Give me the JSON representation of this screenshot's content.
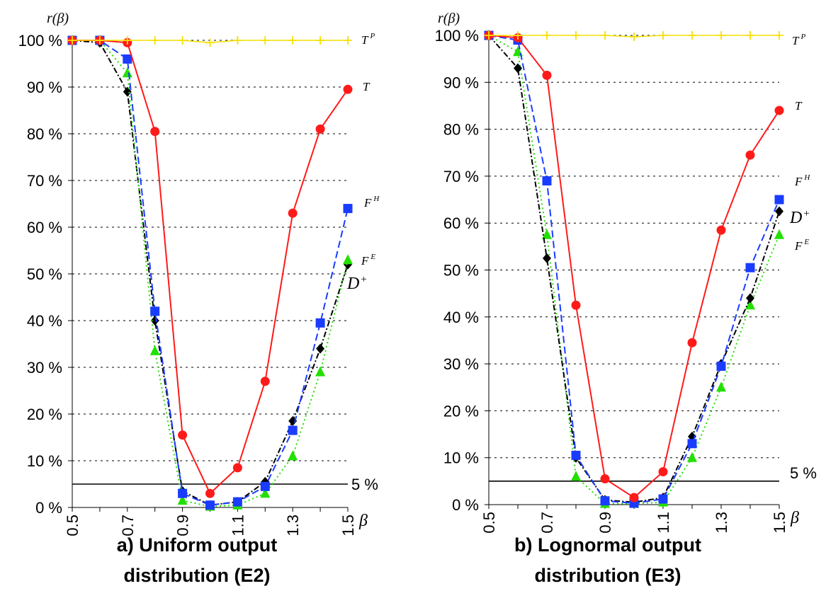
{
  "chart_data": [
    {
      "type": "line",
      "title": "a) Uniform output distribution (E2)",
      "title_lines": [
        "a) Uniform output",
        "distribution (E2)"
      ],
      "ylabel": "r(β)",
      "xlabel": "β",
      "x": [
        0.5,
        0.6,
        0.7,
        0.8,
        0.9,
        1.0,
        1.1,
        1.2,
        1.3,
        1.4,
        1.5
      ],
      "xticks": [
        "0.5",
        "0.7",
        "0.9",
        "1.1",
        "1.3",
        "1.5"
      ],
      "yticks": [
        "0 %",
        "10 %",
        "20 %",
        "30 %",
        "40 %",
        "50 %",
        "60 %",
        "70 %",
        "80 %",
        "90 %",
        "100 %"
      ],
      "ylim": [
        0,
        100
      ],
      "xlim": [
        0.5,
        1.5
      ],
      "grid": "horizontal dotted",
      "reference_line": {
        "value": 5,
        "label": "5 %"
      },
      "series": [
        {
          "name": "T^P",
          "label_main": "T",
          "label_sup": "P",
          "color": "#f5e000",
          "marker": "plus",
          "dash": "none",
          "values": [
            100,
            100,
            100,
            100,
            100,
            99.5,
            100,
            100,
            100,
            100,
            100
          ]
        },
        {
          "name": "T",
          "label_main": "T",
          "label_sup": "",
          "color": "#ff1a1a",
          "marker": "circle",
          "dash": "none",
          "values": [
            100,
            100,
            99.5,
            80.5,
            15.5,
            3,
            8.5,
            27,
            63,
            81,
            89.5
          ]
        },
        {
          "name": "F^H",
          "label_main": "F",
          "label_sup": "H",
          "color": "#1a3cff",
          "marker": "square",
          "dash": "dashed",
          "values": [
            100,
            100,
            96,
            42,
            3,
            0.5,
            1.2,
            4.5,
            16.5,
            39.5,
            64
          ]
        },
        {
          "name": "F^E",
          "label_main": "F",
          "label_sup": "E",
          "color": "#22e000",
          "marker": "triangle",
          "dash": "dotted",
          "values": [
            100,
            100,
            93,
            33.5,
            1.5,
            0.2,
            0.5,
            3,
            11,
            29,
            53
          ]
        },
        {
          "name": "D^+",
          "label_main": "D",
          "label_sup": "+",
          "color": "#000000",
          "marker": "diamond",
          "dash": "dashdot",
          "values": [
            100,
            99.5,
            89,
            40,
            3.5,
            0.5,
            1.2,
            5.5,
            18.5,
            34,
            52
          ]
        }
      ]
    },
    {
      "type": "line",
      "title": "b) Lognormal output distribution (E3)",
      "title_lines": [
        "b) Lognormal output",
        "distribution (E3)"
      ],
      "ylabel": "r(β)",
      "xlabel": "β",
      "x": [
        0.5,
        0.6,
        0.7,
        0.8,
        0.9,
        1.0,
        1.1,
        1.2,
        1.3,
        1.4,
        1.5
      ],
      "xticks": [
        "0.5",
        "0.7",
        "0.9",
        "1.1",
        "1.3",
        "1.5"
      ],
      "yticks": [
        "0 %",
        "10 %",
        "20 %",
        "30 %",
        "40 %",
        "50 %",
        "60 %",
        "70 %",
        "80 %",
        "90 %",
        "100 %"
      ],
      "ylim": [
        0,
        100
      ],
      "xlim": [
        0.5,
        1.5
      ],
      "grid": "horizontal dotted",
      "reference_line": {
        "value": 5,
        "label": "5 %"
      },
      "series": [
        {
          "name": "T^P",
          "label_main": "T",
          "label_sup": "P",
          "color": "#f5e000",
          "marker": "plus",
          "dash": "none",
          "values": [
            100,
            100,
            100,
            100,
            100,
            99.7,
            100,
            100,
            100,
            100,
            100
          ]
        },
        {
          "name": "T",
          "label_main": "T",
          "label_sup": "",
          "color": "#ff1a1a",
          "marker": "circle",
          "dash": "none",
          "values": [
            100,
            99.5,
            91.5,
            42.5,
            5.5,
            1.5,
            7,
            34.5,
            58.5,
            74.5,
            84
          ]
        },
        {
          "name": "F^H",
          "label_main": "F",
          "label_sup": "H",
          "color": "#1a3cff",
          "marker": "square",
          "dash": "dashed",
          "values": [
            100,
            99,
            69,
            10.5,
            0.8,
            0.3,
            1.2,
            13,
            29.5,
            50.5,
            65
          ]
        },
        {
          "name": "D^+",
          "label_main": "D",
          "label_sup": "+",
          "color": "#000000",
          "marker": "diamond",
          "dash": "dashdot",
          "values": [
            100,
            93,
            52.5,
            10,
            1,
            0.5,
            1.5,
            14.5,
            30,
            44,
            62.5
          ]
        },
        {
          "name": "F^E",
          "label_main": "F",
          "label_sup": "E",
          "color": "#22e000",
          "marker": "triangle",
          "dash": "dotted",
          "values": [
            100,
            96.5,
            57.5,
            6,
            0.2,
            0.2,
            0.5,
            10,
            25,
            42.5,
            57.5
          ]
        }
      ]
    }
  ]
}
